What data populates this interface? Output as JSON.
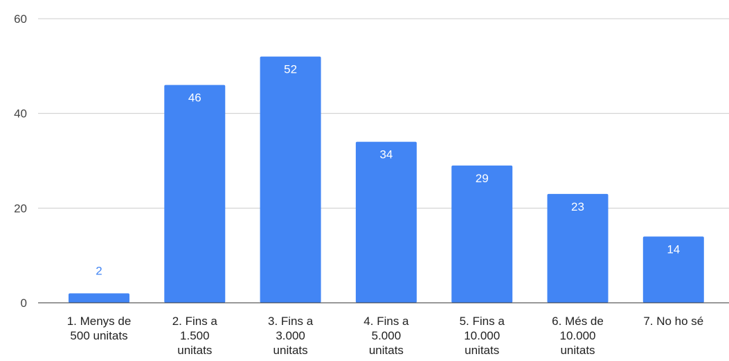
{
  "chart_data": {
    "type": "bar",
    "title": "",
    "xlabel": "",
    "ylabel": "",
    "categories": [
      [
        "1. Menys de",
        "500 unitats"
      ],
      [
        "2. Fins a",
        "1.500",
        "unitats"
      ],
      [
        "3. Fins a",
        "3.000",
        "unitats"
      ],
      [
        "4. Fins a",
        "5.000",
        "unitats"
      ],
      [
        "5. Fins a",
        "10.000",
        "unitats"
      ],
      [
        "6. Més de",
        "10.000",
        "unitats"
      ],
      [
        "7. No ho sé"
      ]
    ],
    "values": [
      2,
      46,
      52,
      34,
      29,
      23,
      14
    ],
    "ylim": [
      0,
      60
    ],
    "yticks": [
      0,
      20,
      40,
      60
    ],
    "grid": true,
    "legend": "none",
    "bar_color": "#4285f4",
    "inside_label_color": "#ffffff",
    "outside_label_color": "#4285f4",
    "gridline_color": "#cccccc",
    "axis_color": "#333333"
  }
}
